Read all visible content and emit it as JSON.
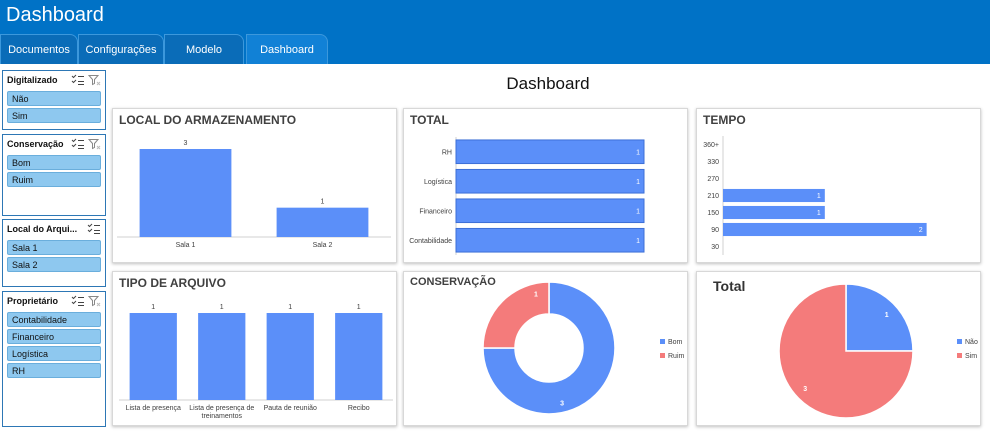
{
  "app": {
    "title": "Dashboard"
  },
  "tabs": [
    {
      "label": "Documentos"
    },
    {
      "label": "Configurações"
    },
    {
      "label": "Modelo"
    },
    {
      "label": "Dashboard",
      "active": true
    }
  ],
  "slicers": [
    {
      "title": "Digitalizado",
      "items": [
        "Não",
        "Sim"
      ]
    },
    {
      "title": "Conservação",
      "items": [
        "Bom",
        "Ruim"
      ]
    },
    {
      "title": "Local do Arqui...",
      "items": [
        "Sala 1",
        "Sala 2"
      ]
    },
    {
      "title": "Proprietário",
      "items": [
        "Contabilidade",
        "Financeiro",
        "Logística",
        "RH"
      ]
    }
  ],
  "dashboard_title": "Dashboard",
  "colors": {
    "header": "#0072C6",
    "bar": "#5B8FF9",
    "pie_red": "#F47B7B",
    "slicer_item": "#8EC8EF"
  },
  "chart_data": [
    {
      "id": "local",
      "type": "bar",
      "title": "LOCAL DO ARMAZENAMENTO",
      "categories": [
        "Sala 1",
        "Sala 2"
      ],
      "values": [
        3,
        1
      ],
      "ylim": [
        0,
        3
      ]
    },
    {
      "id": "total_bar",
      "type": "bar",
      "orientation": "horizontal",
      "title": "TOTAL",
      "categories": [
        "RH",
        "Logística",
        "Financeiro",
        "Contabilidade"
      ],
      "values": [
        1,
        1,
        1,
        1
      ],
      "xlim": [
        0,
        1
      ]
    },
    {
      "id": "tempo",
      "type": "bar",
      "orientation": "horizontal",
      "title": "TEMPO",
      "categories": [
        "360+",
        "330",
        "270",
        "210",
        "150",
        "90",
        "30"
      ],
      "values": [
        null,
        null,
        null,
        1,
        1,
        2,
        null
      ],
      "xlim": [
        0,
        2.2
      ]
    },
    {
      "id": "tipo",
      "type": "bar",
      "title": "TIPO DE ARQUIVO",
      "categories": [
        "Lista de presença",
        "Lista de presença de treinamentos",
        "Pauta de reunião",
        "Recibo"
      ],
      "values": [
        1,
        1,
        1,
        1
      ],
      "ylim": [
        0,
        1
      ]
    },
    {
      "id": "conservacao",
      "type": "pie",
      "donut": true,
      "title": "CONSERVAÇÃO",
      "labels": [
        "Bom",
        "Ruim"
      ],
      "values": [
        3,
        1
      ],
      "colors": [
        "#5B8FF9",
        "#F47B7B"
      ],
      "legend": "right"
    },
    {
      "id": "total_pie",
      "type": "pie",
      "title": "Total",
      "labels": [
        "Não",
        "Sim"
      ],
      "values": [
        1,
        3
      ],
      "colors": [
        "#5B8FF9",
        "#F47B7B"
      ],
      "legend": "right"
    }
  ]
}
